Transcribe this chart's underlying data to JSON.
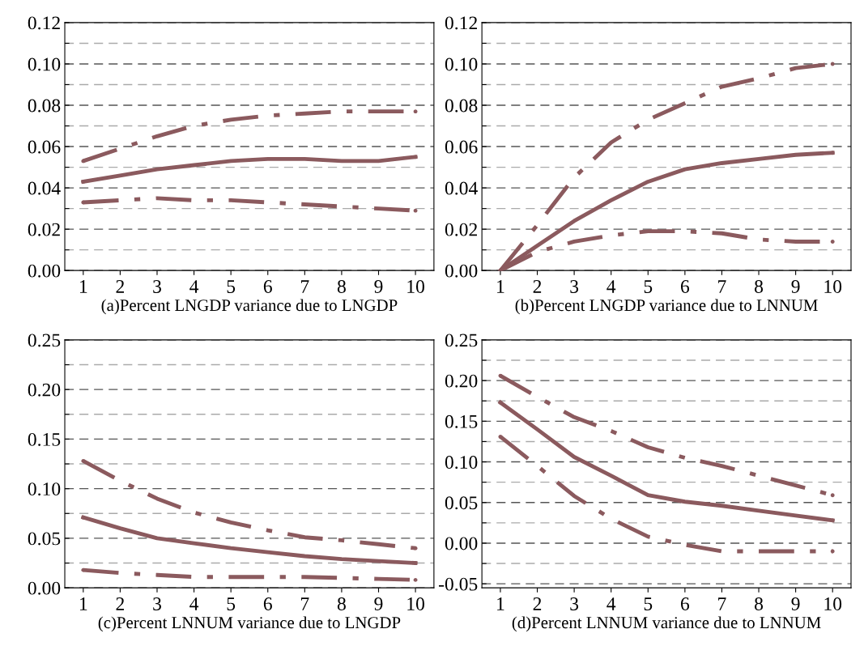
{
  "chart_data": [
    {
      "type": "line",
      "xlabel": "(a)Percent LNGDP variance due to LNGDP",
      "categories": [
        "1",
        "2",
        "3",
        "4",
        "5",
        "6",
        "7",
        "8",
        "9",
        "10"
      ],
      "ylim": [
        0,
        0.12
      ],
      "yticks": [
        {
          "value": 0,
          "label": "0.00"
        },
        {
          "value": 0.01,
          "label": null
        },
        {
          "value": 0.02,
          "label": "0.02"
        },
        {
          "value": 0.03,
          "label": null
        },
        {
          "value": 0.04,
          "label": "0.04"
        },
        {
          "value": 0.05,
          "label": null
        },
        {
          "value": 0.06,
          "label": "0.06"
        },
        {
          "value": 0.07,
          "label": null
        },
        {
          "value": 0.08,
          "label": "0.08"
        },
        {
          "value": 0.09,
          "label": null
        },
        {
          "value": 0.1,
          "label": "0.10"
        },
        {
          "value": 0.11,
          "label": null
        },
        {
          "value": 0.12,
          "label": "0.12"
        }
      ],
      "grid": "y",
      "series": [
        {
          "color": "#8b5a5e",
          "line_style": "solid",
          "values": [
            0.043,
            0.046,
            0.049,
            0.051,
            0.053,
            0.054,
            0.054,
            0.053,
            0.053,
            0.055
          ]
        },
        {
          "color": "#8b5a5e",
          "line_style": "dashed",
          "values": [
            0.053,
            0.059,
            0.065,
            0.07,
            0.073,
            0.075,
            0.076,
            0.077,
            0.077,
            0.077
          ]
        },
        {
          "color": "#8b5a5e",
          "line_style": "dashed",
          "values": [
            0.033,
            0.034,
            0.035,
            0.034,
            0.034,
            0.033,
            0.032,
            0.031,
            0.03,
            0.029
          ]
        }
      ]
    },
    {
      "type": "line",
      "xlabel": "(b)Percent LNGDP variance due to LNNUM",
      "categories": [
        "1",
        "2",
        "3",
        "4",
        "5",
        "6",
        "7",
        "8",
        "9",
        "10"
      ],
      "ylim": [
        0,
        0.12
      ],
      "yticks": [
        {
          "value": 0,
          "label": "0.00"
        },
        {
          "value": 0.01,
          "label": null
        },
        {
          "value": 0.02,
          "label": "0.02"
        },
        {
          "value": 0.03,
          "label": null
        },
        {
          "value": 0.04,
          "label": "0.04"
        },
        {
          "value": 0.05,
          "label": null
        },
        {
          "value": 0.06,
          "label": "0.06"
        },
        {
          "value": 0.07,
          "label": null
        },
        {
          "value": 0.08,
          "label": "0.08"
        },
        {
          "value": 0.09,
          "label": null
        },
        {
          "value": 0.1,
          "label": "0.10"
        },
        {
          "value": 0.11,
          "label": null
        },
        {
          "value": 0.12,
          "label": "0.12"
        }
      ],
      "grid": "y",
      "series": [
        {
          "color": "#8b5a5e",
          "line_style": "solid",
          "values": [
            0.0,
            0.012,
            0.024,
            0.034,
            0.043,
            0.049,
            0.052,
            0.054,
            0.056,
            0.057
          ]
        },
        {
          "color": "#8b5a5e",
          "line_style": "dashed",
          "values": [
            0.0,
            0.022,
            0.045,
            0.062,
            0.073,
            0.081,
            0.089,
            0.093,
            0.098,
            0.1
          ]
        },
        {
          "color": "#8b5a5e",
          "line_style": "dashed",
          "values": [
            0.0,
            0.009,
            0.014,
            0.017,
            0.019,
            0.019,
            0.018,
            0.015,
            0.014,
            0.014
          ]
        }
      ]
    },
    {
      "type": "line",
      "xlabel": "(c)Percent LNNUM variance due to LNGDP",
      "categories": [
        "1",
        "2",
        "3",
        "4",
        "5",
        "6",
        "7",
        "8",
        "9",
        "10"
      ],
      "ylim": [
        0,
        0.25
      ],
      "yticks": [
        {
          "value": 0,
          "label": "0.00"
        },
        {
          "value": 0.025,
          "label": null
        },
        {
          "value": 0.05,
          "label": "0.05"
        },
        {
          "value": 0.075,
          "label": null
        },
        {
          "value": 0.1,
          "label": "0.10"
        },
        {
          "value": 0.125,
          "label": null
        },
        {
          "value": 0.15,
          "label": "0.15"
        },
        {
          "value": 0.175,
          "label": null
        },
        {
          "value": 0.2,
          "label": "0.20"
        },
        {
          "value": 0.225,
          "label": null
        },
        {
          "value": 0.25,
          "label": "0.25"
        }
      ],
      "grid": "y",
      "series": [
        {
          "color": "#8b5a5e",
          "line_style": "solid",
          "values": [
            0.071,
            0.06,
            0.05,
            0.045,
            0.04,
            0.036,
            0.032,
            0.029,
            0.027,
            0.025
          ]
        },
        {
          "color": "#8b5a5e",
          "line_style": "dashed",
          "values": [
            0.128,
            0.108,
            0.09,
            0.076,
            0.066,
            0.058,
            0.051,
            0.048,
            0.044,
            0.04
          ]
        },
        {
          "color": "#8b5a5e",
          "line_style": "dashed",
          "values": [
            0.018,
            0.015,
            0.013,
            0.011,
            0.011,
            0.011,
            0.011,
            0.01,
            0.009,
            0.008
          ]
        }
      ]
    },
    {
      "type": "line",
      "xlabel": "(d)Percent LNNUM variance due to LNNUM",
      "categories": [
        "1",
        "2",
        "3",
        "4",
        "5",
        "6",
        "7",
        "8",
        "9",
        "10"
      ],
      "ylim": [
        -0.055,
        0.25
      ],
      "yticks": [
        {
          "value": -0.05,
          "label": "-0.05"
        },
        {
          "value": -0.025,
          "label": null
        },
        {
          "value": 0,
          "label": "0.00"
        },
        {
          "value": 0.025,
          "label": null
        },
        {
          "value": 0.05,
          "label": "0.05"
        },
        {
          "value": 0.075,
          "label": null
        },
        {
          "value": 0.1,
          "label": "0.10"
        },
        {
          "value": 0.125,
          "label": null
        },
        {
          "value": 0.15,
          "label": "0.15"
        },
        {
          "value": 0.175,
          "label": null
        },
        {
          "value": 0.2,
          "label": "0.20"
        },
        {
          "value": 0.225,
          "label": null
        },
        {
          "value": 0.25,
          "label": "0.25"
        }
      ],
      "grid": "y",
      "series": [
        {
          "color": "#8b5a5e",
          "line_style": "solid",
          "values": [
            0.173,
            0.14,
            0.106,
            0.083,
            0.059,
            0.051,
            0.046,
            0.04,
            0.034,
            0.028
          ]
        },
        {
          "color": "#8b5a5e",
          "line_style": "dashed",
          "values": [
            0.206,
            0.18,
            0.155,
            0.138,
            0.118,
            0.105,
            0.095,
            0.083,
            0.071,
            0.059
          ]
        },
        {
          "color": "#8b5a5e",
          "line_style": "dashed",
          "values": [
            0.131,
            0.095,
            0.058,
            0.03,
            0.008,
            -0.002,
            -0.01,
            -0.01,
            -0.01,
            -0.01
          ]
        }
      ]
    }
  ]
}
